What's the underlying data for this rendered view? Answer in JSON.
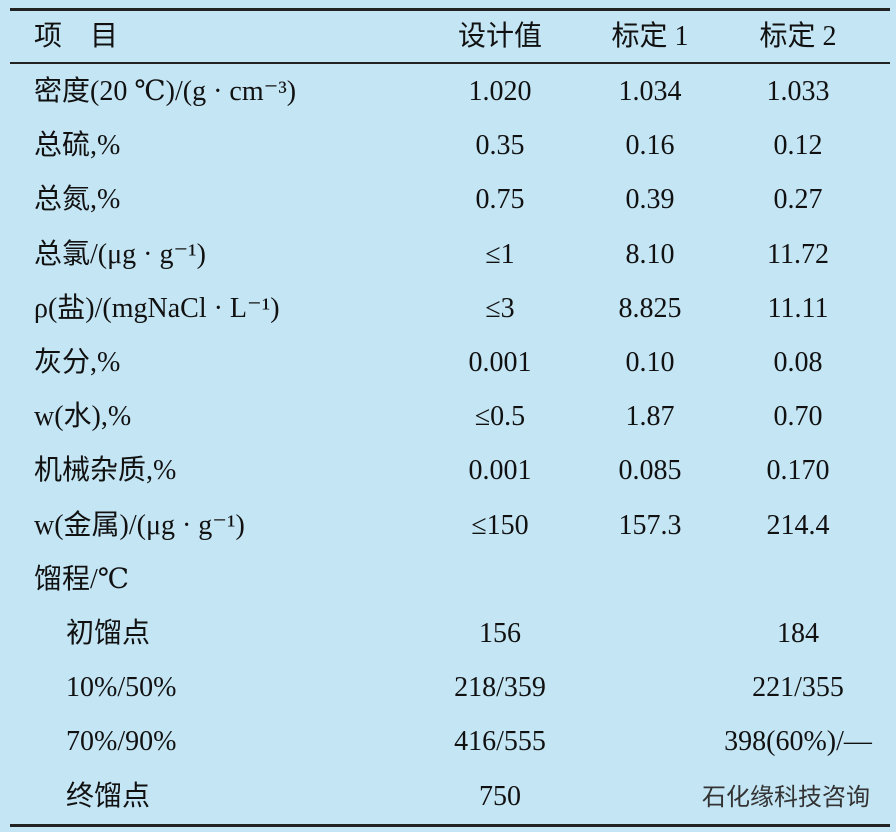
{
  "table": {
    "header": [
      "项　目",
      "设计值",
      "标定 1",
      "标定 2"
    ],
    "rows": [
      {
        "label": "密度(20 ℃)/(g · cm⁻³)",
        "c1": "1.020",
        "c2": "1.034",
        "c3": "1.033"
      },
      {
        "label": "总硫,%",
        "c1": "0.35",
        "c2": "0.16",
        "c3": "0.12"
      },
      {
        "label": "总氮,%",
        "c1": "0.75",
        "c2": "0.39",
        "c3": "0.27"
      },
      {
        "label": "总氯/(μg · g⁻¹)",
        "c1": "≤1",
        "c2": "8.10",
        "c3": "11.72"
      },
      {
        "label": "ρ(盐)/(mgNaCl · L⁻¹)",
        "c1": "≤3",
        "c2": "8.825",
        "c3": "11.11"
      },
      {
        "label": "灰分,%",
        "c1": "0.001",
        "c2": "0.10",
        "c3": "0.08"
      },
      {
        "label": "w(水),%",
        "c1": "≤0.5",
        "c2": "1.87",
        "c3": "0.70"
      },
      {
        "label": "机械杂质,%",
        "c1": "0.001",
        "c2": "0.085",
        "c3": "0.170"
      },
      {
        "label": "w(金属)/(μg · g⁻¹)",
        "c1": "≤150",
        "c2": "157.3",
        "c3": "214.4"
      }
    ],
    "distillation": {
      "label": "馏程/℃",
      "rows": [
        {
          "label": "初馏点",
          "c1": "156",
          "c3": "184"
        },
        {
          "label": "10%/50%",
          "c1": "218/359",
          "c3": "221/355"
        },
        {
          "label": "70%/90%",
          "c1": "416/555",
          "c3": "398(60%)/—"
        },
        {
          "label": "终馏点",
          "c1": "750"
        }
      ]
    },
    "watermark": "石化缘科技咨询"
  }
}
